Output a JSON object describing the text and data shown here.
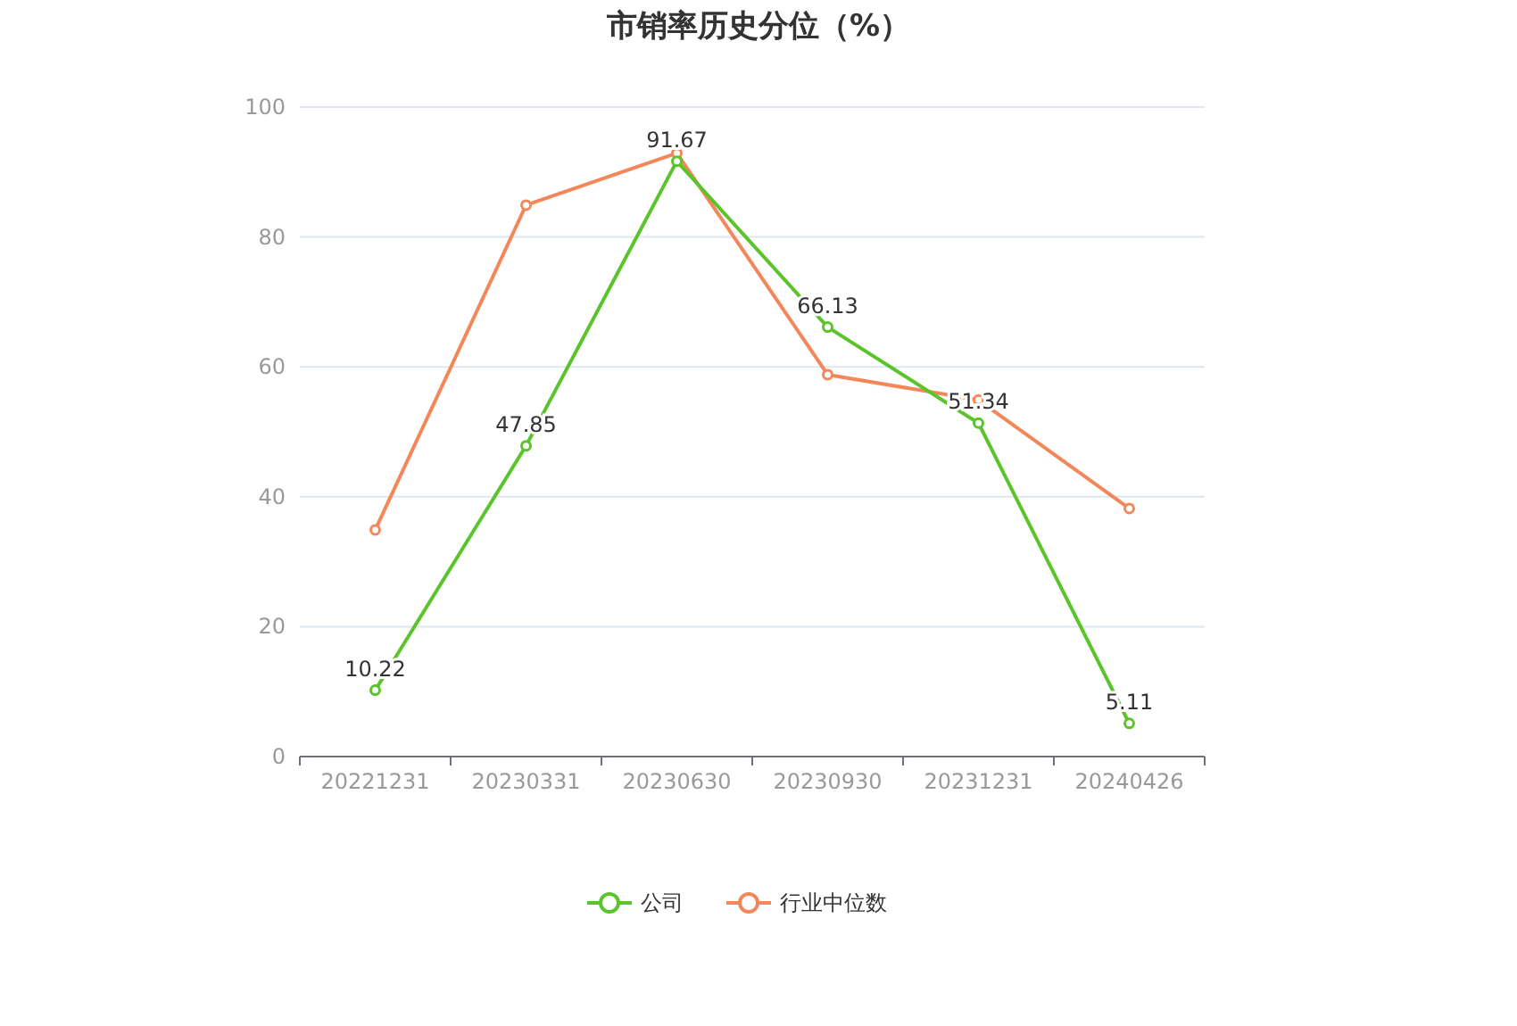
{
  "chart_data": {
    "type": "line",
    "title": "市销率历史分位（%）",
    "categories": [
      "20221231",
      "20230331",
      "20230630",
      "20230930",
      "20231231",
      "20240426"
    ],
    "series": [
      {
        "name": "公司",
        "color": "#5bc42b",
        "values": [
          10.22,
          47.85,
          91.67,
          66.13,
          51.34,
          5.11
        ],
        "value_labels": [
          "10.22",
          "47.85",
          "91.67",
          "66.13",
          "51.34",
          "5.11"
        ]
      },
      {
        "name": "行业中位数",
        "color": "#f4875a",
        "values": [
          34.9,
          84.9,
          92.9,
          58.8,
          54.9,
          38.2
        ]
      }
    ],
    "ylim": [
      0,
      100
    ],
    "yticks": [
      0,
      20,
      40,
      60,
      80,
      100
    ],
    "grid": "y",
    "legend": "bottom",
    "marker": "circle"
  }
}
